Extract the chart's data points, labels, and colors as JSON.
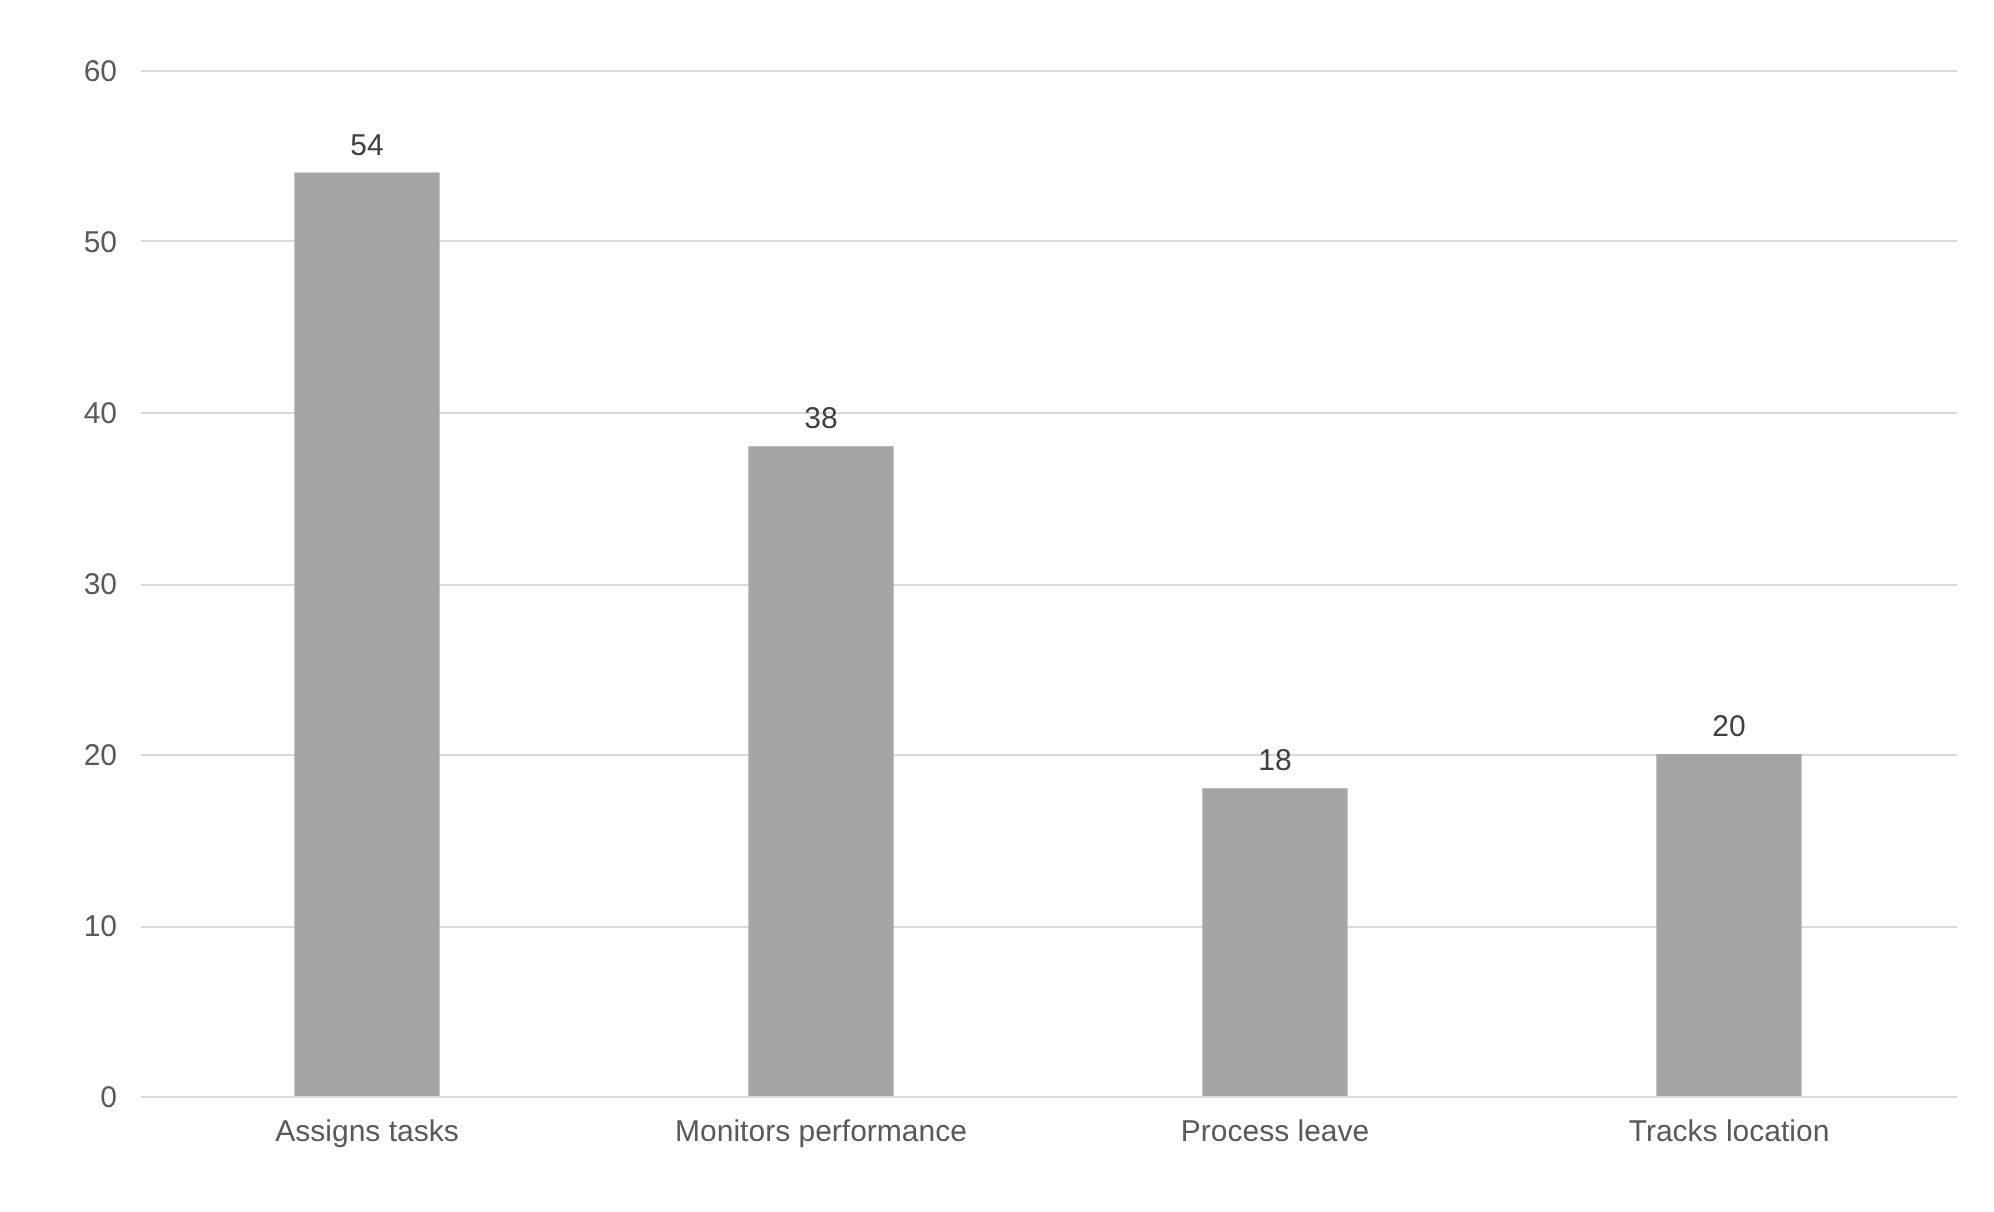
{
  "chart_data": {
    "type": "bar",
    "categories": [
      "Assigns tasks",
      "Monitors performance",
      "Process leave",
      "Tracks location"
    ],
    "values": [
      54,
      38,
      18,
      20
    ],
    "color": "#a5a5a5",
    "ylim": [
      0,
      60
    ],
    "yticks": [
      0,
      10,
      20,
      30,
      40,
      50,
      60
    ],
    "grid": "y",
    "data_labels": true
  }
}
